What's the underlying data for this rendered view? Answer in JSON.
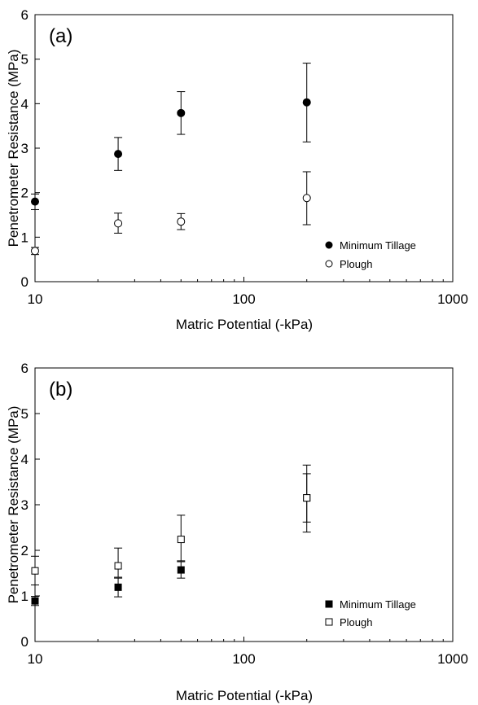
{
  "chart_data": [
    {
      "type": "scatter",
      "panel_label": "(a)",
      "xlabel": "Matric Potential (-kPa)",
      "ylabel": "Penetrometer Resistance (MPa)",
      "xscale": "log",
      "xlim": [
        10,
        1000
      ],
      "ylim": [
        0,
        6
      ],
      "xticks": [
        10,
        100,
        1000
      ],
      "xtick_labels": [
        "10",
        "100",
        "1000"
      ],
      "yticks": [
        0,
        1,
        2,
        3,
        4,
        5,
        6
      ],
      "ytick_labels": [
        "0",
        "1",
        "2",
        "3",
        "4",
        "5",
        "6"
      ],
      "grid": false,
      "legend_position": "bottom-right",
      "series": [
        {
          "name": "Minimum Tillage",
          "marker": "filled-circle",
          "x": [
            10,
            25,
            50,
            200
          ],
          "y": [
            1.8,
            2.87,
            3.79,
            4.03
          ],
          "err_low": [
            1.62,
            2.5,
            3.31,
            3.14
          ],
          "err_high": [
            1.97,
            3.24,
            4.27,
            4.91
          ]
        },
        {
          "name": "Plough",
          "marker": "open-circle",
          "x": [
            10,
            25,
            50,
            200
          ],
          "y": [
            0.69,
            1.31,
            1.35,
            1.88
          ],
          "err_low": [
            0.61,
            1.09,
            1.17,
            1.28
          ],
          "err_high": [
            0.77,
            1.54,
            1.53,
            2.47
          ]
        }
      ]
    },
    {
      "type": "scatter",
      "panel_label": "(b)",
      "xlabel": "Matric Potential (-kPa)",
      "ylabel": "Penetrometer Resistance (MPa)",
      "xscale": "log",
      "xlim": [
        10,
        1000
      ],
      "ylim": [
        0,
        6
      ],
      "xticks": [
        10,
        100,
        1000
      ],
      "xtick_labels": [
        "10",
        "100",
        "1000"
      ],
      "yticks": [
        0,
        1,
        2,
        3,
        4,
        5,
        6
      ],
      "ytick_labels": [
        "0",
        "1",
        "2",
        "3",
        "4",
        "5",
        "6"
      ],
      "grid": false,
      "legend_position": "bottom-right",
      "series": [
        {
          "name": "Minimum Tillage",
          "marker": "filled-square",
          "x": [
            10,
            25,
            50,
            200
          ],
          "y": [
            0.89,
            1.19,
            1.57,
            3.15
          ],
          "err_low": [
            0.79,
            0.98,
            1.39,
            2.62
          ],
          "err_high": [
            0.99,
            1.39,
            1.75,
            3.68
          ]
        },
        {
          "name": "Plough",
          "marker": "open-square",
          "x": [
            10,
            25,
            50,
            200
          ],
          "y": [
            1.55,
            1.66,
            2.24,
            3.15
          ],
          "err_low": [
            1.24,
            1.41,
            1.77,
            2.4
          ],
          "err_high": [
            1.87,
            2.05,
            2.77,
            3.87
          ]
        }
      ]
    }
  ]
}
